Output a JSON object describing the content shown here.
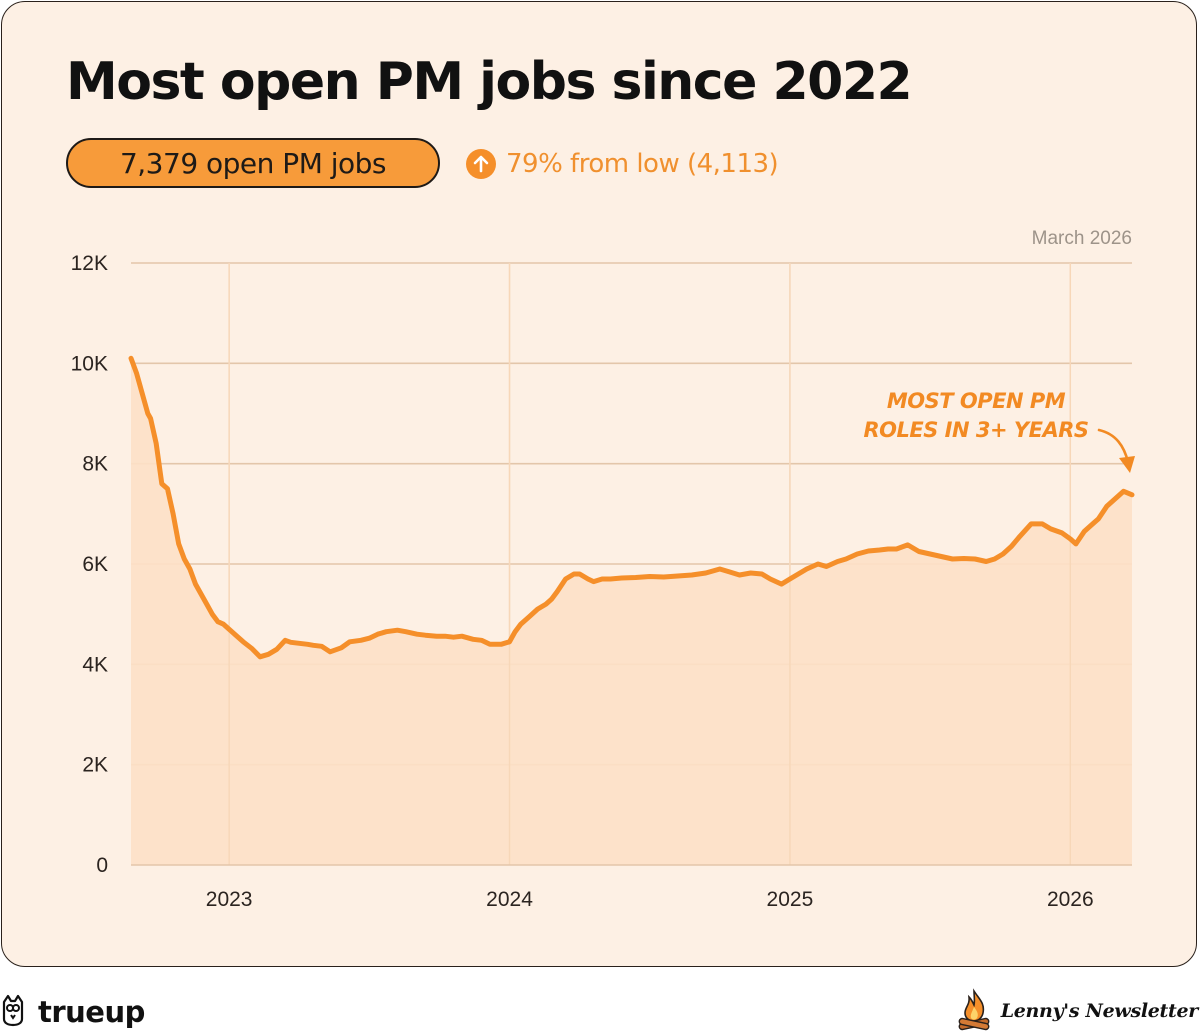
{
  "title": "Most open PM jobs since 2022",
  "headline_stat": "7,379 open PM jobs",
  "change_text": "79% from low (4,113)",
  "as_of": "March 2026",
  "annotation": [
    "MOST OPEN PM",
    "ROLES IN 3+ YEARS"
  ],
  "footer": {
    "left_brand": "trueup",
    "right_brand": "Lenny's Newsletter"
  },
  "colors": {
    "line": "#f58f2a",
    "area": "#fde0c6",
    "background": "#fdf0e4"
  },
  "icons": [
    "arrow-up-icon",
    "owl-icon",
    "campfire-icon"
  ],
  "chart_data": {
    "type": "area",
    "title": "Most open PM jobs since 2022",
    "x_unit": "year (decimal)",
    "y_unit": "open PM jobs",
    "xlim": [
      2022.65,
      2026.22
    ],
    "ylim": [
      0,
      12000
    ],
    "y_ticks": [
      0,
      2000,
      4000,
      6000,
      8000,
      10000,
      12000
    ],
    "y_tick_labels": [
      "0",
      "2K",
      "4K",
      "6K",
      "8K",
      "10K",
      "12K"
    ],
    "x_ticks": [
      2023,
      2024,
      2025,
      2026
    ],
    "x_tick_labels": [
      "2023",
      "2024",
      "2025",
      "2026"
    ],
    "grid": true,
    "series": [
      {
        "x": [
          2022.65,
          2022.67,
          2022.69,
          2022.71,
          2022.72,
          2022.74,
          2022.76,
          2022.78,
          2022.8,
          2022.82,
          2022.84,
          2022.86,
          2022.88,
          2022.9,
          2022.92,
          2022.94,
          2022.96,
          2022.98,
          2023.0,
          2023.02,
          2023.05,
          2023.08,
          2023.11,
          2023.14,
          2023.17,
          2023.2,
          2023.22,
          2023.25,
          2023.28,
          2023.3,
          2023.33,
          2023.36,
          2023.4,
          2023.43,
          2023.47,
          2023.5,
          2023.53,
          2023.56,
          2023.6,
          2023.63,
          2023.67,
          2023.7,
          2023.74,
          2023.77,
          2023.8,
          2023.83,
          2023.87,
          2023.9,
          2023.93,
          2023.97,
          2024.0,
          2024.02,
          2024.04,
          2024.07,
          2024.1,
          2024.13,
          2024.15,
          2024.17,
          2024.2,
          2024.23,
          2024.25,
          2024.28,
          2024.3,
          2024.33,
          2024.36,
          2024.4,
          2024.45,
          2024.5,
          2024.55,
          2024.6,
          2024.65,
          2024.7,
          2024.75,
          2024.78,
          2024.82,
          2024.86,
          2024.9,
          2024.93,
          2024.97,
          2025.0,
          2025.03,
          2025.06,
          2025.1,
          2025.13,
          2025.17,
          2025.2,
          2025.24,
          2025.28,
          2025.32,
          2025.35,
          2025.38,
          2025.42,
          2025.46,
          2025.5,
          2025.54,
          2025.58,
          2025.62,
          2025.66,
          2025.7,
          2025.73,
          2025.76,
          2025.79,
          2025.82,
          2025.86,
          2025.9,
          2025.93,
          2025.97,
          2026.0,
          2026.02,
          2026.05,
          2026.08,
          2026.1,
          2026.13,
          2026.16,
          2026.19,
          2026.22
        ],
        "y": [
          10100,
          9800,
          9400,
          9000,
          8900,
          8400,
          7600,
          7500,
          7000,
          6400,
          6100,
          5900,
          5600,
          5400,
          5200,
          5000,
          4850,
          4800,
          4700,
          4600,
          4450,
          4320,
          4150,
          4200,
          4300,
          4480,
          4440,
          4420,
          4400,
          4380,
          4360,
          4250,
          4330,
          4450,
          4480,
          4520,
          4600,
          4650,
          4680,
          4650,
          4600,
          4580,
          4560,
          4560,
          4540,
          4560,
          4500,
          4480,
          4400,
          4400,
          4450,
          4650,
          4800,
          4950,
          5100,
          5200,
          5300,
          5450,
          5700,
          5800,
          5800,
          5700,
          5650,
          5700,
          5700,
          5720,
          5730,
          5750,
          5740,
          5760,
          5780,
          5820,
          5900,
          5850,
          5780,
          5820,
          5800,
          5700,
          5600,
          5700,
          5800,
          5900,
          6000,
          5950,
          6050,
          6100,
          6200,
          6260,
          6280,
          6300,
          6300,
          6380,
          6250,
          6200,
          6150,
          6100,
          6110,
          6100,
          6050,
          6100,
          6200,
          6350,
          6550,
          6800,
          6800,
          6700,
          6620,
          6500,
          6400,
          6650,
          6800,
          6900,
          7150,
          7300,
          7450,
          7379
        ]
      }
    ]
  }
}
